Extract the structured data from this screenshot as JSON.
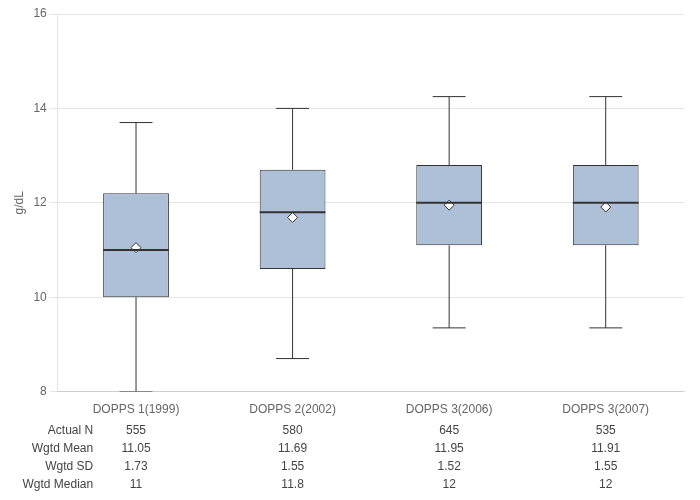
{
  "chart_data": {
    "type": "box",
    "categories": [
      "DOPPS 1(1999)",
      "DOPPS 2(2002)",
      "DOPPS 3(2006)",
      "DOPPS 3(2007)"
    ],
    "boxes": [
      {
        "whisker_low": 8.0,
        "q1": 10.0,
        "median": 11.0,
        "q3": 12.2,
        "whisker_high": 13.7,
        "mean": 11.05
      },
      {
        "whisker_low": 8.7,
        "q1": 10.6,
        "median": 11.8,
        "q3": 12.7,
        "whisker_high": 14.0,
        "mean": 11.69
      },
      {
        "whisker_low": 9.35,
        "q1": 11.1,
        "median": 12.0,
        "q3": 12.8,
        "whisker_high": 14.25,
        "mean": 11.95
      },
      {
        "whisker_low": 9.35,
        "q1": 11.1,
        "median": 12.0,
        "q3": 12.8,
        "whisker_high": 14.25,
        "mean": 11.91
      }
    ],
    "table_rows": [
      {
        "label": "Actual N",
        "values": [
          "555",
          "580",
          "645",
          "535"
        ]
      },
      {
        "label": "Wgtd Mean",
        "values": [
          "11.05",
          "11.69",
          "11.95",
          "11.91"
        ]
      },
      {
        "label": "Wgtd SD",
        "values": [
          "1.73",
          "1.55",
          "1.52",
          "1.55"
        ]
      },
      {
        "label": "Wgtd Median",
        "values": [
          "11",
          "11.8",
          "12",
          "12"
        ]
      }
    ],
    "y_label": "g/dL",
    "ylim": [
      8,
      16
    ],
    "yticks": [
      8,
      10,
      12,
      14,
      16
    ],
    "color": "#adc0d8",
    "grid": true
  }
}
